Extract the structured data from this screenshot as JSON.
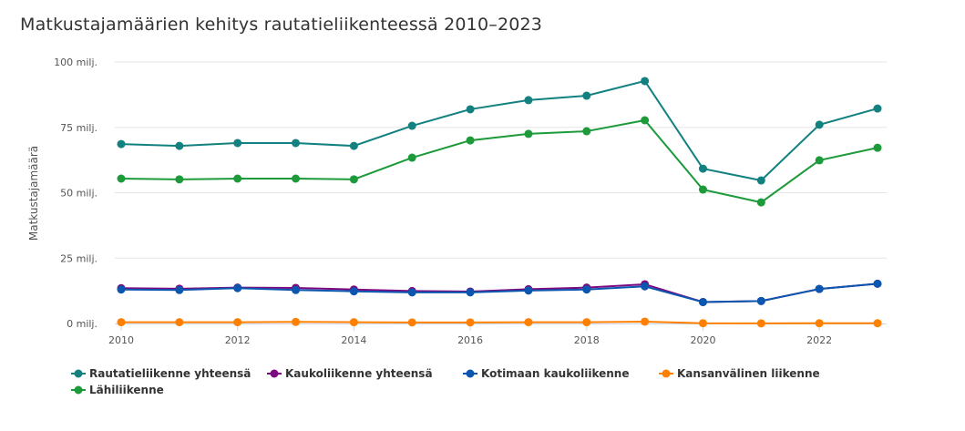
{
  "chart_data": {
    "type": "line",
    "title": "Matkustajamäärien kehitys rautatieliikenteessä 2010–2023",
    "ylabel": "Matkustajamäärä",
    "xlabel": "",
    "ylim": [
      0,
      100
    ],
    "yticks": [
      {
        "v": 0,
        "label": "0 milj."
      },
      {
        "v": 25,
        "label": "25 milj."
      },
      {
        "v": 50,
        "label": "50 milj."
      },
      {
        "v": 75,
        "label": "75 milj."
      },
      {
        "v": 100,
        "label": "100 milj."
      }
    ],
    "xticks": [
      2010,
      2012,
      2014,
      2016,
      2018,
      2020,
      2022
    ],
    "x": [
      2010,
      2011,
      2012,
      2013,
      2014,
      2015,
      2016,
      2017,
      2018,
      2019,
      2020,
      2021,
      2022,
      2023
    ],
    "legend_position": "bottom-left",
    "series": [
      {
        "name": "Rautatieliikenne yhteensä",
        "color": "#12817f",
        "values": [
          68.6,
          67.9,
          69,
          69,
          67.9,
          75.6,
          81.9,
          85.4,
          87.1,
          92.7,
          59.2,
          54.7,
          76,
          82.2
        ]
      },
      {
        "name": "Kaukoliikenne yhteensä",
        "color": "#7b0a82",
        "values": [
          13.5,
          13.3,
          13.7,
          13.6,
          13.0,
          12.4,
          12.2,
          13.1,
          13.7,
          15.0,
          8.2,
          8.6,
          13.2,
          15.2
        ]
      },
      {
        "name": "Kotimaan kaukoliikenne",
        "color": "#0b57b0",
        "values": [
          13.0,
          12.8,
          13.5,
          12.8,
          12.3,
          11.9,
          11.9,
          12.6,
          13.0,
          14.2,
          8.2,
          8.6,
          13.2,
          15.2
        ]
      },
      {
        "name": "Kansanvälinen liikenne",
        "color": "#ff8000",
        "values": [
          0.5,
          0.5,
          0.5,
          0.6,
          0.5,
          0.4,
          0.4,
          0.5,
          0.5,
          0.7,
          0.1,
          0.05,
          0.1,
          0.1
        ]
      },
      {
        "name": "Lähiliikenne",
        "color": "#1d9a3a",
        "values": [
          55.4,
          55.1,
          55.4,
          55.4,
          55.1,
          63.4,
          70,
          72.5,
          73.5,
          77.7,
          51.2,
          46.3,
          62.4,
          67.2
        ]
      }
    ]
  }
}
